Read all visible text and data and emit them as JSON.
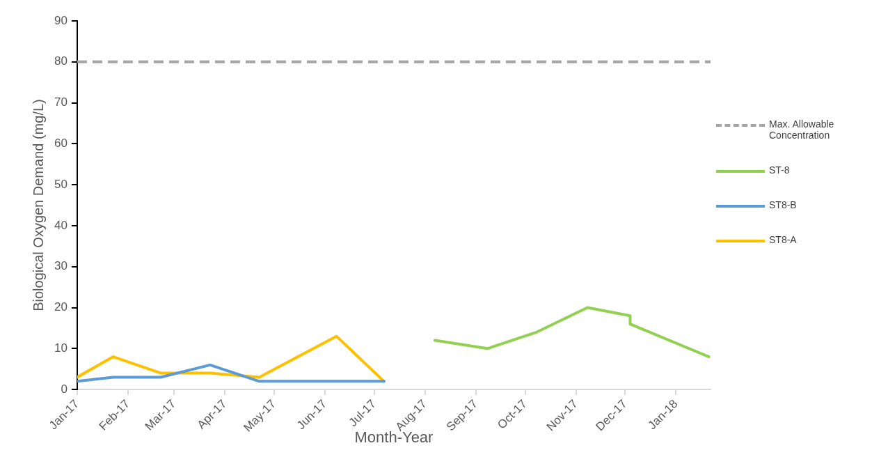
{
  "chart_data": {
    "type": "line",
    "xlabel": "Month-Year",
    "ylabel": "Biological Oxygen Demand (mg/L)",
    "xlim": [
      "2017-01-01",
      "2018-01-22"
    ],
    "xticks": [
      {
        "value": "2017-01-01",
        "label": "Jan-17"
      },
      {
        "value": "2017-02-01",
        "label": "Feb-17"
      },
      {
        "value": "2017-03-01",
        "label": "Mar-17"
      },
      {
        "value": "2017-04-01",
        "label": "Apr-17"
      },
      {
        "value": "2017-05-01",
        "label": "May-17"
      },
      {
        "value": "2017-06-01",
        "label": "Jun-17"
      },
      {
        "value": "2017-07-01",
        "label": "Jul-17"
      },
      {
        "value": "2017-08-01",
        "label": "Aug-17"
      },
      {
        "value": "2017-09-01",
        "label": "Sep-17"
      },
      {
        "value": "2017-10-01",
        "label": "Oct-17"
      },
      {
        "value": "2017-11-01",
        "label": "Nov-17"
      },
      {
        "value": "2017-12-01",
        "label": "Dec-17"
      },
      {
        "value": "2018-01-01",
        "label": "Jan-18"
      }
    ],
    "ylim": [
      0,
      90
    ],
    "yticks": [
      0,
      10,
      20,
      30,
      40,
      50,
      60,
      70,
      80,
      90
    ],
    "grid": false,
    "legend": "right",
    "marker": "none",
    "line_style": "solid",
    "ref_lines": [
      {
        "axis": "y",
        "value": 80,
        "label": "Max. Allowable Concentration",
        "color": "#a5a5a5",
        "line_style": "dashed"
      }
    ],
    "series": [
      {
        "name": "ST-8",
        "color": "#92d050",
        "x": [
          "2017-08-07",
          "2017-09-08",
          "2017-10-08",
          "2017-11-08",
          "2017-12-04",
          "2017-12-04",
          "2018-01-21"
        ],
        "values": [
          12,
          10,
          14,
          20,
          18,
          16,
          8
        ]
      },
      {
        "name": "ST8-B",
        "color": "#5b9bd5",
        "x": [
          "2017-01-01",
          "2017-01-23",
          "2017-02-21",
          "2017-03-23",
          "2017-04-22",
          "2017-06-08",
          "2017-07-07"
        ],
        "values": [
          2,
          3,
          3,
          6,
          2,
          2,
          2
        ]
      },
      {
        "name": "ST8-A",
        "color": "#ffc000",
        "x": [
          "2017-01-01",
          "2017-01-23",
          "2017-02-21",
          "2017-03-23",
          "2017-04-22",
          "2017-06-08",
          "2017-07-07"
        ],
        "values": [
          3,
          8,
          4,
          4,
          3,
          13,
          2
        ]
      }
    ]
  }
}
